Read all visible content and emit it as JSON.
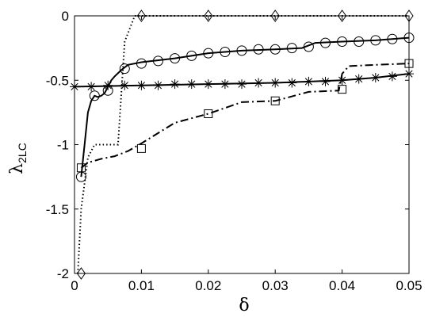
{
  "chart_data": {
    "type": "line",
    "title": "",
    "xlabel": "δ",
    "ylabel": {
      "main": "λ",
      "sub": "2LC"
    },
    "xlim": [
      0,
      0.05
    ],
    "ylim": [
      -2,
      0
    ],
    "xticks": [
      0,
      0.01,
      0.02,
      0.03,
      0.04,
      0.05
    ],
    "xtick_labels": [
      "0",
      "0.01",
      "0.02",
      "0.03",
      "0.04",
      "0.05"
    ],
    "yticks": [
      -2,
      -1.5,
      -1,
      -0.5,
      0
    ],
    "ytick_labels": [
      "-2",
      "-1.5",
      "-1",
      "-0.5",
      "0"
    ],
    "grid": false,
    "legend": "none",
    "series": [
      {
        "style": "solid",
        "marker": "circle",
        "color": "#000000",
        "line": [
          [
            0.001,
            -1.25
          ],
          [
            0.0015,
            -1.0
          ],
          [
            0.002,
            -0.75
          ],
          [
            0.0025,
            -0.66
          ],
          [
            0.003,
            -0.62
          ],
          [
            0.0035,
            -0.63
          ],
          [
            0.004,
            -0.62
          ],
          [
            0.0045,
            -0.6
          ],
          [
            0.005,
            -0.55
          ],
          [
            0.0055,
            -0.5
          ],
          [
            0.006,
            -0.47
          ],
          [
            0.007,
            -0.42
          ],
          [
            0.008,
            -0.38
          ],
          [
            0.01,
            -0.36
          ],
          [
            0.015,
            -0.33
          ],
          [
            0.02,
            -0.29
          ],
          [
            0.025,
            -0.27
          ],
          [
            0.03,
            -0.26
          ],
          [
            0.034,
            -0.25
          ],
          [
            0.036,
            -0.21
          ],
          [
            0.04,
            -0.2
          ],
          [
            0.045,
            -0.19
          ],
          [
            0.05,
            -0.17
          ]
        ],
        "markers": [
          [
            0.001,
            -1.25
          ],
          [
            0.003,
            -0.62
          ],
          [
            0.005,
            -0.58
          ],
          [
            0.0075,
            -0.41
          ],
          [
            0.01,
            -0.37
          ],
          [
            0.0125,
            -0.35
          ],
          [
            0.015,
            -0.33
          ],
          [
            0.0175,
            -0.31
          ],
          [
            0.02,
            -0.29
          ],
          [
            0.0225,
            -0.28
          ],
          [
            0.025,
            -0.27
          ],
          [
            0.0275,
            -0.26
          ],
          [
            0.03,
            -0.26
          ],
          [
            0.0325,
            -0.25
          ],
          [
            0.035,
            -0.24
          ],
          [
            0.0375,
            -0.21
          ],
          [
            0.04,
            -0.2
          ],
          [
            0.0425,
            -0.2
          ],
          [
            0.045,
            -0.19
          ],
          [
            0.0475,
            -0.18
          ],
          [
            0.05,
            -0.17
          ]
        ]
      },
      {
        "style": "dashdot",
        "marker": "square",
        "color": "#000000",
        "line": [
          [
            0.001,
            -1.18
          ],
          [
            0.002,
            -1.14
          ],
          [
            0.004,
            -1.11
          ],
          [
            0.006,
            -1.09
          ],
          [
            0.008,
            -1.05
          ],
          [
            0.01,
            -0.99
          ],
          [
            0.015,
            -0.83
          ],
          [
            0.02,
            -0.76
          ],
          [
            0.025,
            -0.67
          ],
          [
            0.03,
            -0.66
          ],
          [
            0.035,
            -0.59
          ],
          [
            0.0395,
            -0.58
          ],
          [
            0.04,
            -0.45
          ],
          [
            0.041,
            -0.39
          ],
          [
            0.045,
            -0.38
          ],
          [
            0.05,
            -0.37
          ]
        ],
        "markers": [
          [
            0.001,
            -1.18
          ],
          [
            0.01,
            -1.03
          ],
          [
            0.02,
            -0.76
          ],
          [
            0.03,
            -0.66
          ],
          [
            0.04,
            -0.57
          ],
          [
            0.05,
            -0.37
          ]
        ]
      },
      {
        "style": "solid",
        "marker": "star",
        "color": "#000000",
        "line": [
          [
            0,
            -0.55
          ],
          [
            0.01,
            -0.54
          ],
          [
            0.02,
            -0.53
          ],
          [
            0.03,
            -0.52
          ],
          [
            0.04,
            -0.5
          ],
          [
            0.045,
            -0.48
          ],
          [
            0.05,
            -0.45
          ]
        ],
        "markers": [
          [
            0,
            -0.55
          ],
          [
            0.0025,
            -0.55
          ],
          [
            0.005,
            -0.54
          ],
          [
            0.0075,
            -0.54
          ],
          [
            0.01,
            -0.54
          ],
          [
            0.0125,
            -0.54
          ],
          [
            0.015,
            -0.53
          ],
          [
            0.0175,
            -0.53
          ],
          [
            0.02,
            -0.53
          ],
          [
            0.0225,
            -0.53
          ],
          [
            0.025,
            -0.53
          ],
          [
            0.0275,
            -0.52
          ],
          [
            0.03,
            -0.52
          ],
          [
            0.0325,
            -0.52
          ],
          [
            0.035,
            -0.51
          ],
          [
            0.0375,
            -0.51
          ],
          [
            0.04,
            -0.5
          ],
          [
            0.0425,
            -0.49
          ],
          [
            0.045,
            -0.48
          ],
          [
            0.0475,
            -0.47
          ],
          [
            0.05,
            -0.45
          ]
        ]
      },
      {
        "style": "dotted",
        "marker": "diamond",
        "color": "#000000",
        "line": [
          [
            0.0005,
            -2.0
          ],
          [
            0.001,
            -1.5
          ],
          [
            0.002,
            -1.1
          ],
          [
            0.003,
            -1.0
          ],
          [
            0.0065,
            -1.0
          ],
          [
            0.007,
            -0.6
          ],
          [
            0.0075,
            -0.2
          ],
          [
            0.009,
            0.0
          ],
          [
            0.05,
            0.0
          ]
        ],
        "markers": [
          [
            0.001,
            -2.0
          ],
          [
            0.01,
            0.0
          ],
          [
            0.02,
            0.0
          ],
          [
            0.03,
            0.0
          ],
          [
            0.04,
            0.0
          ],
          [
            0.05,
            0.0
          ]
        ]
      }
    ]
  }
}
